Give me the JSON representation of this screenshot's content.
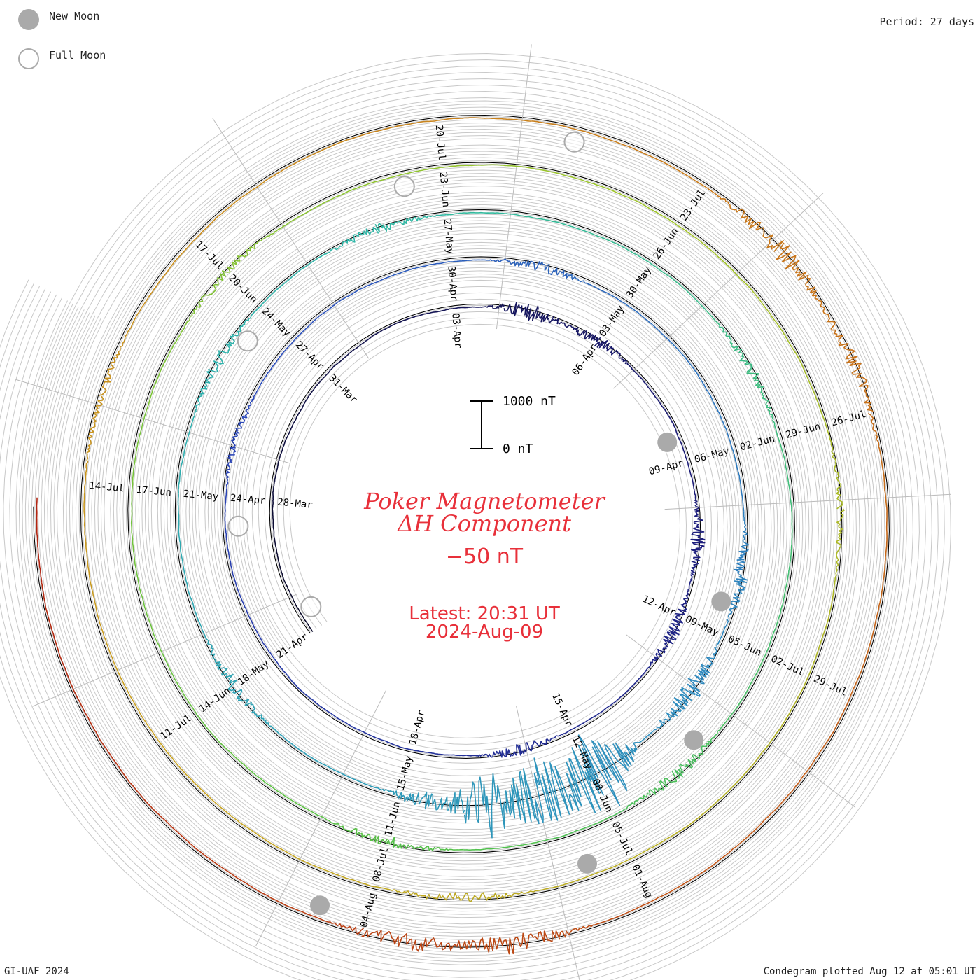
{
  "legend": {
    "new_moon_label": "New Moon",
    "full_moon_label": "Full Moon",
    "new_moon_color": "#aaaaaa",
    "full_moon_color": "#aaaaaa"
  },
  "header": {
    "period": "Period: 27 days"
  },
  "footer": {
    "credit": "GI-UAF 2024",
    "plotted": "Condegram plotted Aug 12 at 05:01 UT"
  },
  "center": {
    "title_line1": "Poker Magnetometer",
    "title_line2": "ΔH Component",
    "baseline_value": "−50 nT",
    "latest_line1": "Latest: 20:31 UT",
    "latest_line2": "2024-Aug-09",
    "scale_top_label": "1000 nT",
    "scale_bottom_label": "0 nT",
    "text_color": "#e8303a"
  },
  "chart_data": {
    "type": "condegram",
    "period_days": 27,
    "start_date": "2024-03-25",
    "end_date": "2024-08-09",
    "scale_nT": [
      0,
      1000
    ],
    "baseline_nT": -50,
    "spiral_color_stops": [
      "#0b0b2a",
      "#1c1c7a",
      "#2a45b8",
      "#2e8dbf",
      "#2fb8a8",
      "#52c04a",
      "#9ec42a",
      "#c8a020",
      "#c8701a",
      "#b02010"
    ],
    "date_labels": [
      "28-Mar",
      "31-Mar",
      "03-Apr",
      "06-Apr",
      "09-Apr",
      "12-Apr",
      "15-Apr",
      "18-Apr",
      "21-Apr",
      "24-Apr",
      "27-Apr",
      "30-Apr",
      "03-May",
      "06-May",
      "09-May",
      "12-May",
      "15-May",
      "18-May",
      "21-May",
      "24-May",
      "27-May",
      "30-May",
      "02-Jun",
      "05-Jun",
      "08-Jun",
      "11-Jun",
      "14-Jun",
      "17-Jun",
      "20-Jun",
      "23-Jun",
      "26-Jun",
      "29-Jun",
      "02-Jul",
      "05-Jul",
      "08-Jul",
      "11-Jul",
      "14-Jul",
      "17-Jul",
      "20-Jul",
      "23-Jul",
      "26-Jul",
      "29-Jul",
      "01-Aug",
      "04-Aug"
    ],
    "new_moons": [
      "2024-04-08",
      "2024-05-08",
      "2024-06-06",
      "2024-07-05",
      "2024-08-04"
    ],
    "full_moons": [
      "2024-03-25",
      "2024-04-23",
      "2024-05-23",
      "2024-06-22",
      "2024-07-21"
    ],
    "disturbances": [
      {
        "day": 10.5,
        "amplitude_nT": 250
      },
      {
        "day": 12.0,
        "amplitude_nT": 180
      },
      {
        "day": 16.5,
        "amplitude_nT": 220
      },
      {
        "day": 18.3,
        "amplitude_nT": 200
      },
      {
        "day": 22.0,
        "amplitude_nT": 180
      },
      {
        "day": 31.0,
        "amplitude_nT": 120
      },
      {
        "day": 37.5,
        "amplitude_nT": 180
      },
      {
        "day": 44.0,
        "amplitude_nT": 220
      },
      {
        "day": 46.0,
        "amplitude_nT": 320
      },
      {
        "day": 48.0,
        "amplitude_nT": 1300
      },
      {
        "day": 48.8,
        "amplitude_nT": 1100
      },
      {
        "day": 49.6,
        "amplitude_nT": 900
      },
      {
        "day": 50.5,
        "amplitude_nT": 250
      },
      {
        "day": 54.0,
        "amplitude_nT": 200
      },
      {
        "day": 59.0,
        "amplitude_nT": 160
      },
      {
        "day": 62.0,
        "amplitude_nT": 160
      },
      {
        "day": 68.0,
        "amplitude_nT": 150
      },
      {
        "day": 74.0,
        "amplitude_nT": 180
      },
      {
        "day": 78.0,
        "amplitude_nT": 150
      },
      {
        "day": 87.0,
        "amplitude_nT": 130
      },
      {
        "day": 97.0,
        "amplitude_nT": 120
      },
      {
        "day": 104.0,
        "amplitude_nT": 150
      },
      {
        "day": 112.0,
        "amplitude_nT": 120
      },
      {
        "day": 121.0,
        "amplitude_nT": 300
      },
      {
        "day": 122.5,
        "amplitude_nT": 200
      },
      {
        "day": 130.5,
        "amplitude_nT": 280
      },
      {
        "day": 131.5,
        "amplitude_nT": 250
      }
    ]
  }
}
